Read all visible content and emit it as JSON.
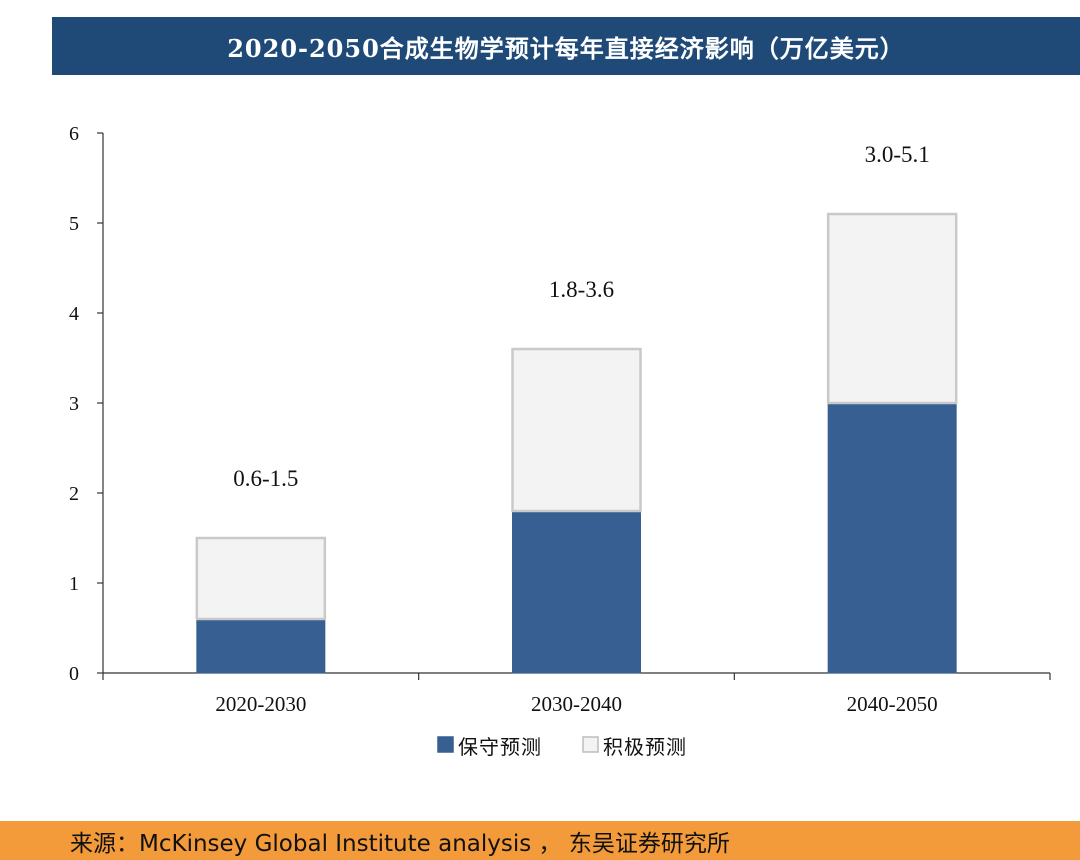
{
  "title": "2020-2050合成生物学预计每年直接经济影响（万亿美元）",
  "source": "来源：McKinsey Global Institute analysis ， 东吴证券研究所",
  "chart_data": {
    "type": "bar",
    "stacked": true,
    "categories": [
      "2020-2030",
      "2030-2040",
      "2040-2050"
    ],
    "series": [
      {
        "name": "保守预测",
        "values": [
          0.6,
          1.8,
          3.0
        ],
        "color": "#375f91"
      },
      {
        "name": "积极预测",
        "values": [
          0.9,
          1.8,
          2.1
        ],
        "color": "#f3f3f3"
      }
    ],
    "annotations": [
      "0.6-1.5",
      "1.8-3.6",
      "3.0-5.1"
    ],
    "ylim": [
      0,
      6
    ],
    "yticks": [
      "0",
      "1",
      "2",
      "3",
      "4",
      "5",
      "6"
    ],
    "grid": false,
    "legend": "bottom"
  }
}
